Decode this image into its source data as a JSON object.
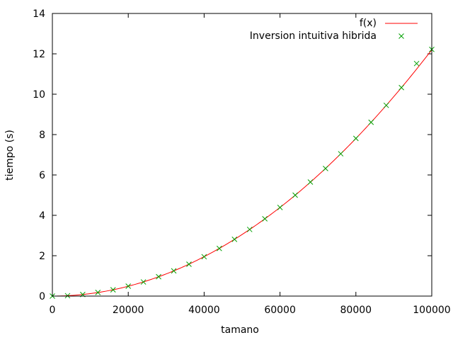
{
  "chart_data": {
    "type": "line",
    "xlabel": "tamano",
    "ylabel": "tiempo (s)",
    "xlim": [
      0,
      100000
    ],
    "ylim": [
      0,
      14
    ],
    "xticks": [
      0,
      20000,
      40000,
      60000,
      80000,
      100000
    ],
    "yticks": [
      0,
      2,
      4,
      6,
      8,
      10,
      12,
      14
    ],
    "grid": false,
    "legend_position": "top-right",
    "series": [
      {
        "name": "f(x)",
        "kind": "line",
        "color": "#ff0000",
        "function": "1.22e-9 * x^2",
        "x_range": [
          0,
          100000
        ]
      },
      {
        "name": "Inversion intuitiva hibrida",
        "kind": "scatter",
        "marker": "cross",
        "color": "#00a000",
        "x": [
          0,
          4000,
          8000,
          12000,
          16000,
          20000,
          24000,
          28000,
          32000,
          36000,
          40000,
          44000,
          48000,
          52000,
          56000,
          60000,
          64000,
          68000,
          72000,
          76000,
          80000,
          84000,
          88000,
          92000,
          96000,
          100000
        ],
        "y": [
          0.0,
          0.02,
          0.08,
          0.18,
          0.31,
          0.49,
          0.7,
          0.96,
          1.25,
          1.58,
          1.95,
          2.36,
          2.81,
          3.3,
          3.83,
          4.39,
          5.0,
          5.65,
          6.32,
          7.05,
          7.81,
          8.61,
          9.45,
          10.33,
          11.52,
          12.22
        ]
      }
    ]
  }
}
